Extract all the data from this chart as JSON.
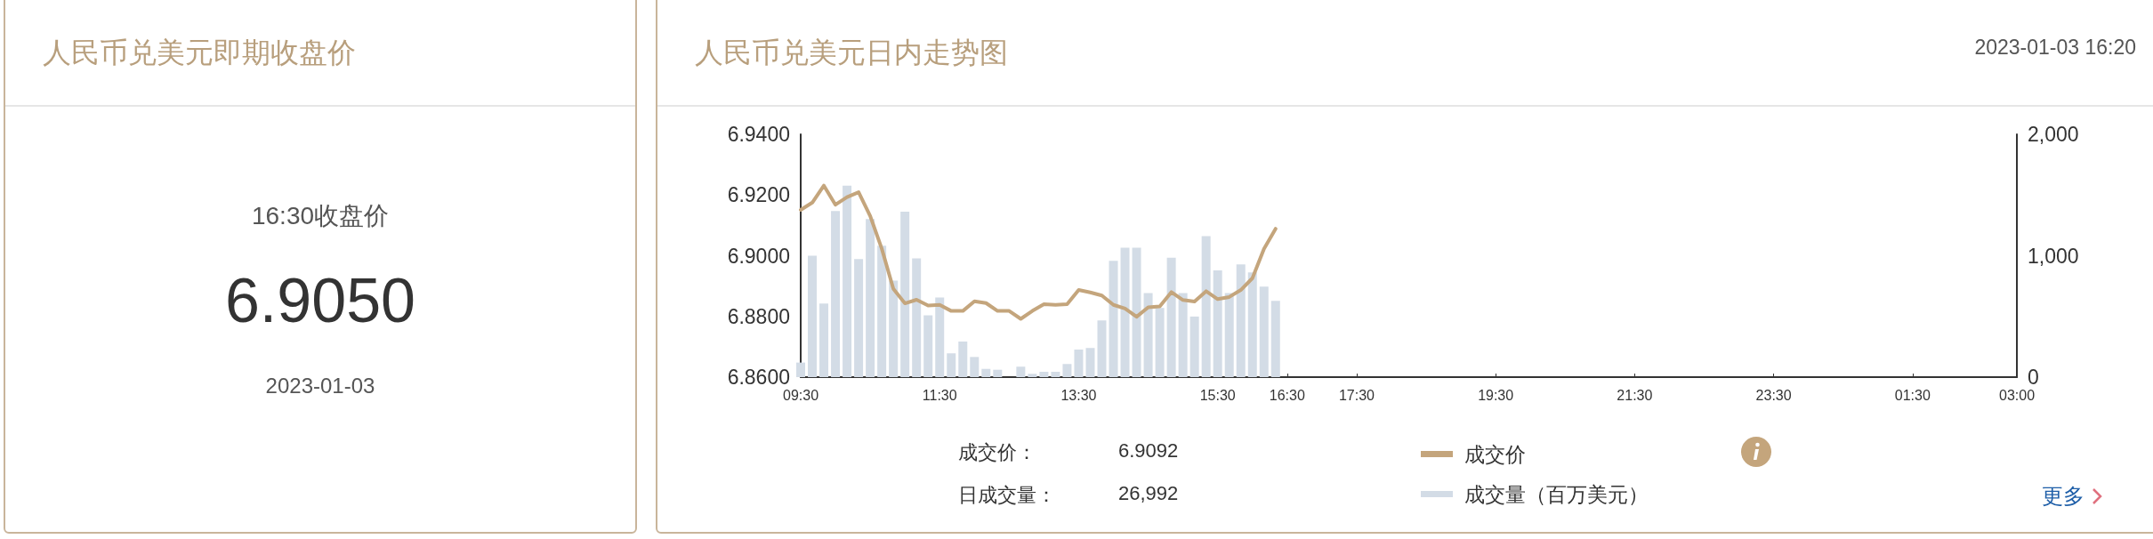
{
  "chart_data": [
    {
      "type": "other",
      "title": "人民币兑美元即期收盘价",
      "annotations": [
        "16:30收盘价",
        "6.9050",
        "2023-01-03"
      ]
    },
    {
      "type": "line",
      "title": "人民币兑美元日内走势图",
      "subtitle": "2023-01-03 16:20",
      "x": [
        "2023-01-03T09:30",
        "2023-01-03T09:40",
        "2023-01-03T09:50",
        "2023-01-03T10:00",
        "2023-01-03T10:10",
        "2023-01-03T10:20",
        "2023-01-03T10:30",
        "2023-01-03T10:40",
        "2023-01-03T10:50",
        "2023-01-03T11:00",
        "2023-01-03T11:10",
        "2023-01-03T11:20",
        "2023-01-03T11:30",
        "2023-01-03T11:40",
        "2023-01-03T11:50",
        "2023-01-03T12:00",
        "2023-01-03T12:10",
        "2023-01-03T12:20",
        "2023-01-03T12:30",
        "2023-01-03T12:40",
        "2023-01-03T12:50",
        "2023-01-03T13:00",
        "2023-01-03T13:10",
        "2023-01-03T13:20",
        "2023-01-03T13:30",
        "2023-01-03T13:40",
        "2023-01-03T13:50",
        "2023-01-03T14:00",
        "2023-01-03T14:10",
        "2023-01-03T14:20",
        "2023-01-03T14:30",
        "2023-01-03T14:40",
        "2023-01-03T14:50",
        "2023-01-03T15:00",
        "2023-01-03T15:10",
        "2023-01-03T15:20",
        "2023-01-03T15:30",
        "2023-01-03T15:40",
        "2023-01-03T15:50",
        "2023-01-03T16:00",
        "2023-01-03T16:10",
        "2023-01-03T16:20"
      ],
      "series": [
        {
          "name": "成交价",
          "type": "line",
          "color": "#c4a57c",
          "values": [
            6.9151,
            6.9175,
            6.9231,
            6.9168,
            6.9193,
            6.9209,
            6.9131,
            6.9023,
            6.8891,
            6.8843,
            6.8855,
            6.8836,
            6.8838,
            6.8818,
            6.8818,
            6.885,
            6.8844,
            6.8818,
            6.8818,
            6.8792,
            6.8818,
            6.884,
            6.8838,
            6.884,
            6.8887,
            6.8879,
            6.8869,
            6.8838,
            6.8826,
            6.8799,
            6.883,
            6.8833,
            6.888,
            6.8854,
            6.8849,
            6.8883,
            6.8857,
            6.8864,
            6.8887,
            6.8926,
            6.9023,
            6.9089
          ]
        },
        {
          "name": "成交量（百万美元）",
          "type": "bar",
          "axis": "y2",
          "color": "#d3dce6",
          "values": [
            120,
            1000,
            606,
            1369,
            1577,
            973,
            1303,
            1083,
            795,
            1362,
            978,
            509,
            655,
            196,
            293,
            166,
            68,
            61,
            0,
            86,
            27,
            44,
            44,
            108,
            227,
            240,
            467,
            958,
            1066,
            1066,
            692,
            570,
            983,
            692,
            499,
            1161,
            880,
            692,
            929,
            863,
            746,
            628
          ]
        }
      ],
      "xlim": [
        "2023-01-03T09:30",
        "2023-01-04T03:00"
      ],
      "xticks": [
        {
          "value": "2023-01-03T09:30",
          "label": "09:30"
        },
        {
          "value": "2023-01-03T11:30",
          "label": "11:30"
        },
        {
          "value": "2023-01-03T13:30",
          "label": "13:30"
        },
        {
          "value": "2023-01-03T15:30",
          "label": "15:30"
        },
        {
          "value": "2023-01-03T16:30",
          "label": "16:30"
        },
        {
          "value": "2023-01-03T17:30",
          "label": "17:30"
        },
        {
          "value": "2023-01-03T19:30",
          "label": "19:30"
        },
        {
          "value": "2023-01-03T21:30",
          "label": "21:30"
        },
        {
          "value": "2023-01-03T23:30",
          "label": "23:30"
        },
        {
          "value": "2023-01-04T01:30",
          "label": "01:30"
        },
        {
          "value": "2023-01-04T03:00",
          "label": "03:00"
        }
      ],
      "ylim": [
        6.86,
        6.94
      ],
      "yticks": [
        {
          "value": 6.86,
          "label": "6.8600"
        },
        {
          "value": 6.88,
          "label": "6.8800"
        },
        {
          "value": 6.9,
          "label": "6.9000"
        },
        {
          "value": 6.92,
          "label": "6.9200"
        },
        {
          "value": 6.94,
          "label": "6.9400"
        }
      ],
      "y2lim": [
        0,
        2000
      ],
      "y2ticks": [
        0,
        {
          "value": 1000,
          "label": "1,000"
        },
        {
          "value": 2000,
          "label": "2,000"
        }
      ],
      "grid": false,
      "legend": "bottom",
      "marker": "none",
      "line_style": "solid",
      "annotations": [
        "成交价：",
        "6.9092",
        "日成交量：",
        "26,992",
        "更多"
      ]
    }
  ]
}
